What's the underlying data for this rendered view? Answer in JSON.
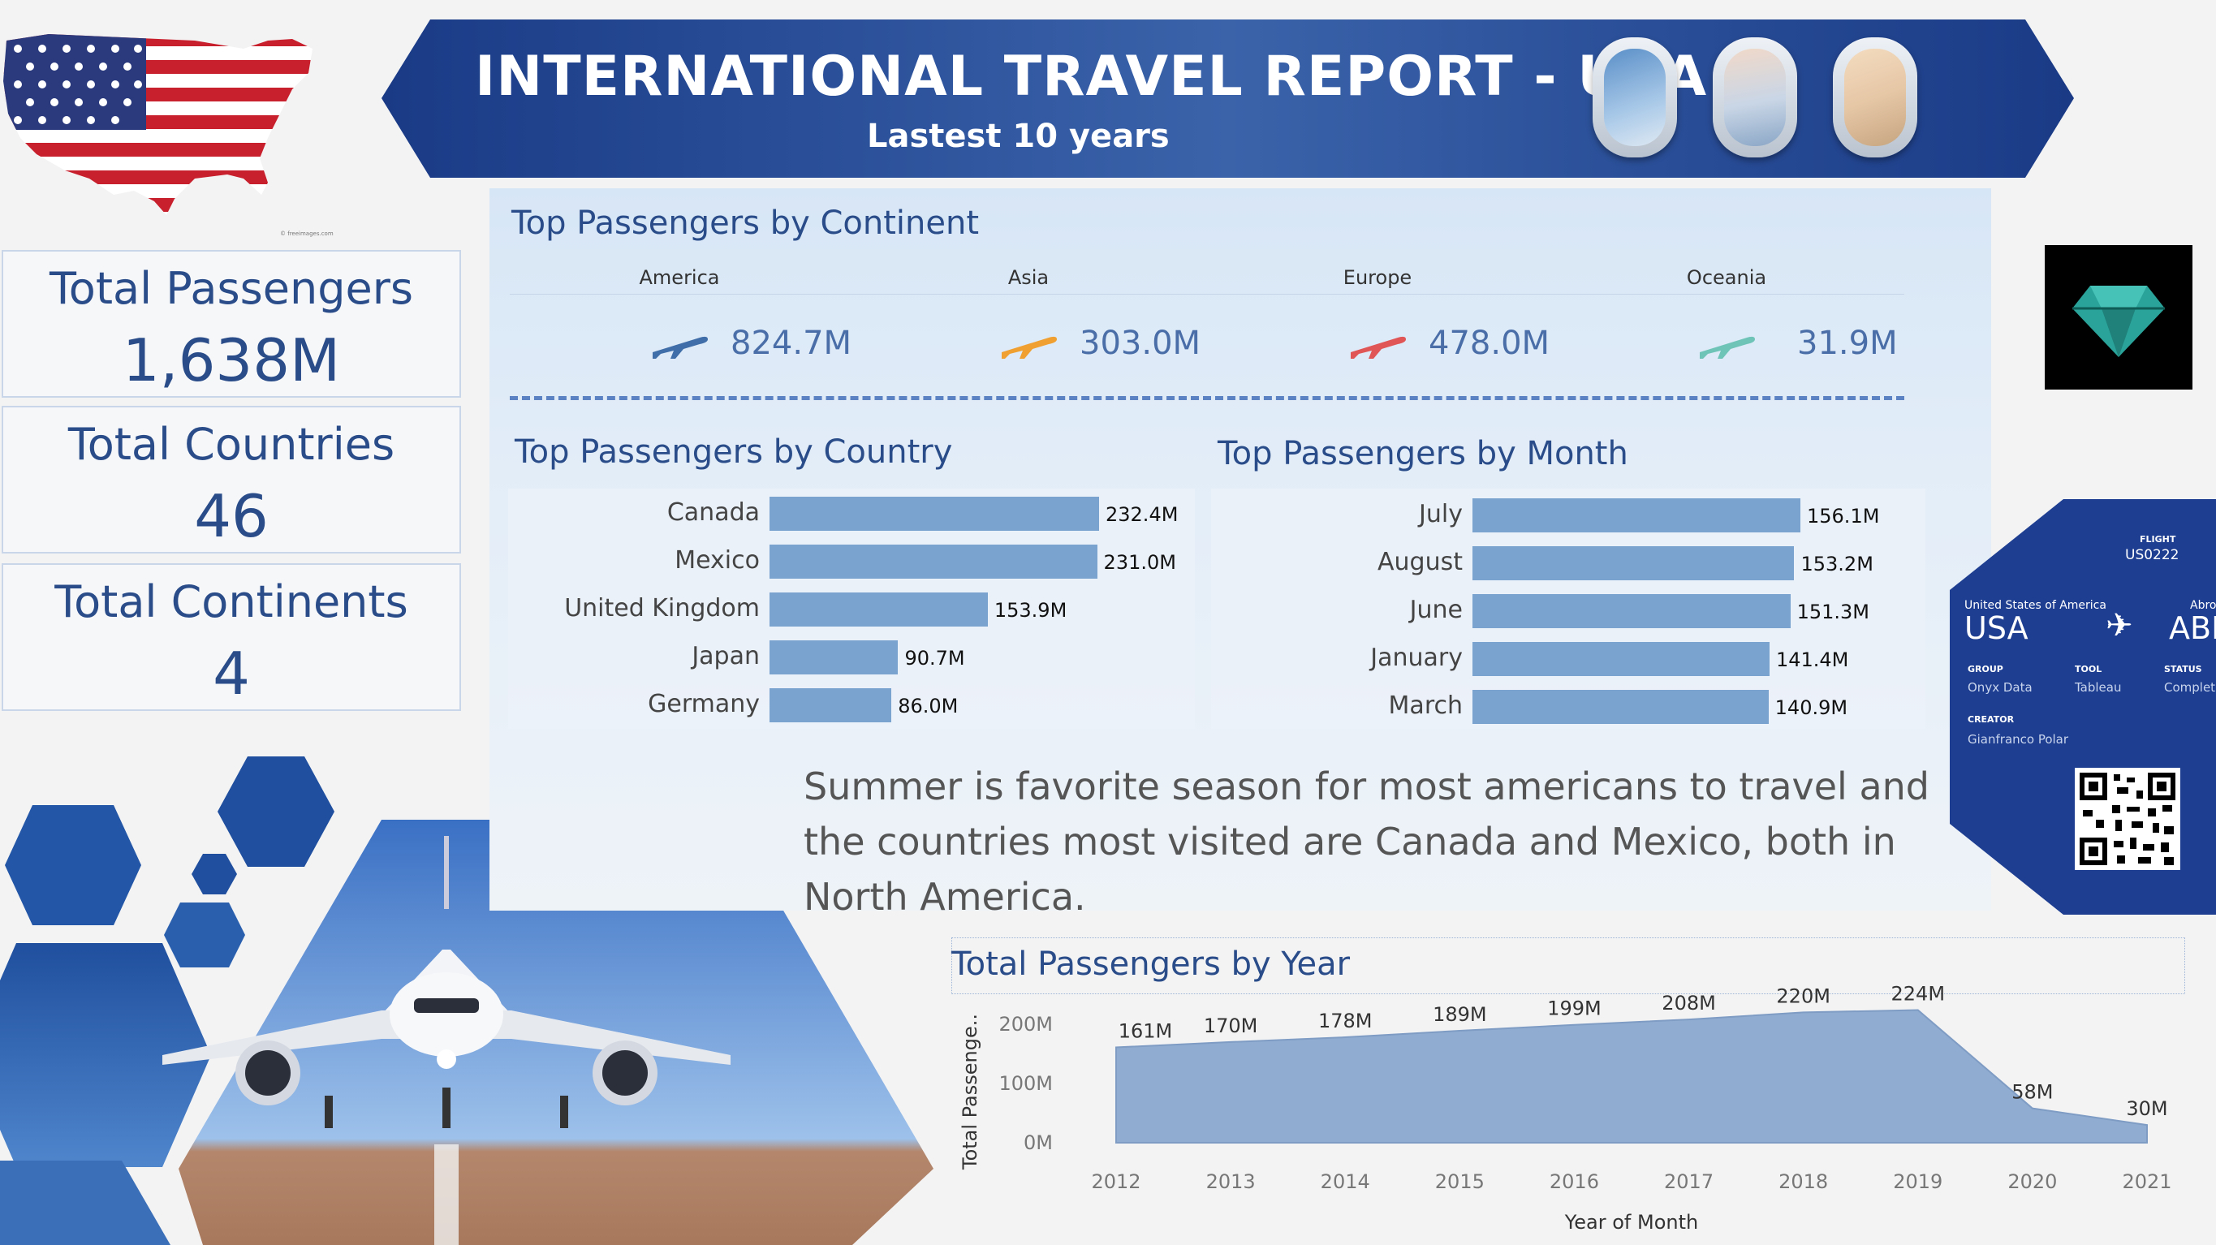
{
  "header": {
    "title": "INTERNATIONAL TRAVEL REPORT - USA",
    "subtitle": "Lastest 10 years"
  },
  "colors": {
    "navy": "#1f3f8a",
    "bar": "#7ba3cf",
    "accent_teal": "#2aa39a"
  },
  "kpis": [
    {
      "label": "Total Passengers",
      "value": "1,638M"
    },
    {
      "label": "Total Countries",
      "value": "46"
    },
    {
      "label": "Total Continents",
      "value": "4"
    }
  ],
  "continents": {
    "title": "Top Passengers by Continent",
    "items": [
      {
        "name": "America",
        "value": "824.7M",
        "plane_color": "#3f6ea8"
      },
      {
        "name": "Asia",
        "value": "303.0M",
        "plane_color": "#f0a030"
      },
      {
        "name": "Europe",
        "value": "478.0M",
        "plane_color": "#e05555"
      },
      {
        "name": "Oceania",
        "value": "31.9M",
        "plane_color": "#6fc4b8"
      }
    ]
  },
  "insight": "Summer is favorite season for most americans to travel and the countries most visited are Canada and Mexico, both in North America.",
  "boarding_pass": {
    "flight_label": "FLIGHT",
    "flight": "US0222",
    "origin_caption": "United States of America",
    "origin": "USA",
    "dest_caption": "Abro",
    "dest": "ABI",
    "group_label": "GROUP",
    "group": "Onyx Data",
    "tool_label": "TOOL",
    "tool": "Tableau",
    "status_label": "STATUS",
    "status": "Complet",
    "creator_label": "CREATOR",
    "creator": "Gianfranco Polar"
  },
  "map_credit": "© freeimages.com",
  "chart_data": [
    {
      "type": "bar",
      "orientation": "horizontal",
      "title": "Top Passengers by Country",
      "categories": [
        "Canada",
        "Mexico",
        "United Kingdom",
        "Japan",
        "Germany"
      ],
      "values": [
        232.4,
        231.0,
        153.9,
        90.7,
        86.0
      ],
      "labels": [
        "232.4M",
        "231.0M",
        "153.9M",
        "90.7M",
        "86.0M"
      ]
    },
    {
      "type": "bar",
      "orientation": "horizontal",
      "title": "Top Passengers by Month",
      "categories": [
        "July",
        "August",
        "June",
        "January",
        "March"
      ],
      "values": [
        156.1,
        153.2,
        151.3,
        141.4,
        140.9
      ],
      "labels": [
        "156.1M",
        "153.2M",
        "151.3M",
        "141.4M",
        "140.9M"
      ]
    },
    {
      "type": "area",
      "title": "Total Passengers by Year",
      "xlabel": "Year of Month",
      "ylabel": "Total Passenge..",
      "x": [
        "2012",
        "2013",
        "2014",
        "2015",
        "2016",
        "2017",
        "2018",
        "2019",
        "2020",
        "2021"
      ],
      "values": [
        161,
        170,
        178,
        189,
        199,
        208,
        220,
        224,
        58,
        30
      ],
      "labels": [
        "161M",
        "170M",
        "178M",
        "189M",
        "199M",
        "208M",
        "220M",
        "224M",
        "58M",
        "30M"
      ],
      "yticks": [
        "0M",
        "100M",
        "200M"
      ],
      "ylim": [
        0,
        224
      ]
    }
  ]
}
